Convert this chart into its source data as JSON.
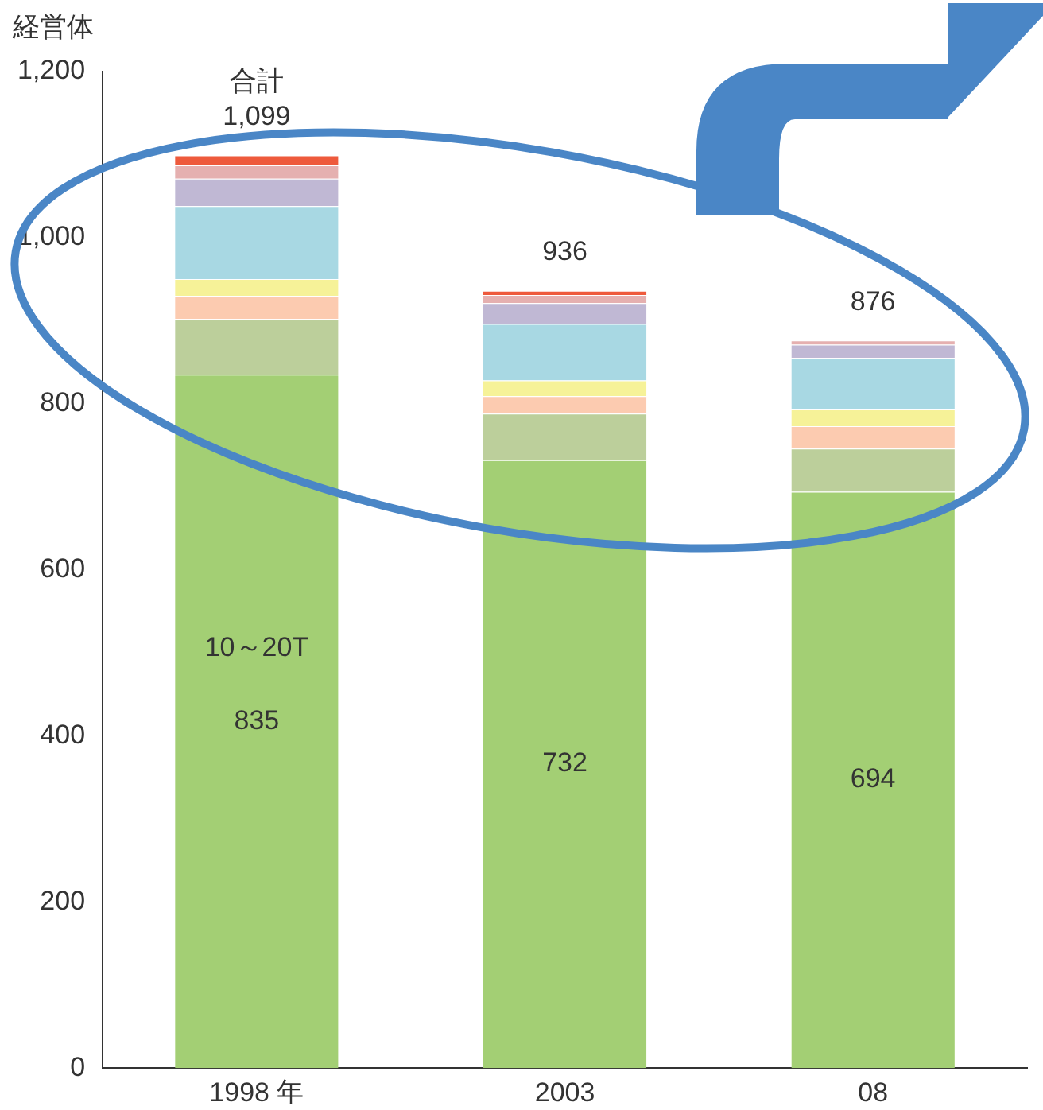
{
  "chart_data": {
    "type": "bar",
    "stacked": true,
    "ylabel": "経営体",
    "categories": [
      "1998 年",
      "2003",
      "08"
    ],
    "series": [
      {
        "color": "#a3cf74",
        "values": [
          835,
          732,
          694
        ],
        "value_labels": [
          "835",
          "732",
          "694"
        ]
      },
      {
        "color": "#bccf9b",
        "values": [
          67,
          56,
          52
        ]
      },
      {
        "color": "#fccbb0",
        "values": [
          28,
          21,
          27
        ]
      },
      {
        "color": "#f6f298",
        "values": [
          20,
          19,
          20
        ]
      },
      {
        "color": "#a8d8e3",
        "values": [
          88,
          68,
          62
        ]
      },
      {
        "color": "#c0b8d4",
        "values": [
          33,
          25,
          16
        ]
      },
      {
        "color": "#e5b0b0",
        "values": [
          16,
          10,
          5
        ]
      },
      {
        "color": "#ee5a3c",
        "values": [
          12,
          5,
          null
        ]
      }
    ],
    "totals": [
      "1,099",
      "936",
      "876"
    ],
    "annotations": [
      "合計",
      "10～20T"
    ],
    "ylim": [
      0,
      1200
    ],
    "yticks": [
      0,
      {
        "value": 200,
        "label": "200"
      },
      {
        "value": 400,
        "label": "400"
      },
      {
        "value": 600,
        "label": "600"
      },
      {
        "value": 800,
        "label": "800"
      },
      {
        "value": 1000,
        "label": "1,000"
      },
      {
        "value": 1200,
        "label": "1,200"
      }
    ],
    "grid": false,
    "legend": false
  }
}
